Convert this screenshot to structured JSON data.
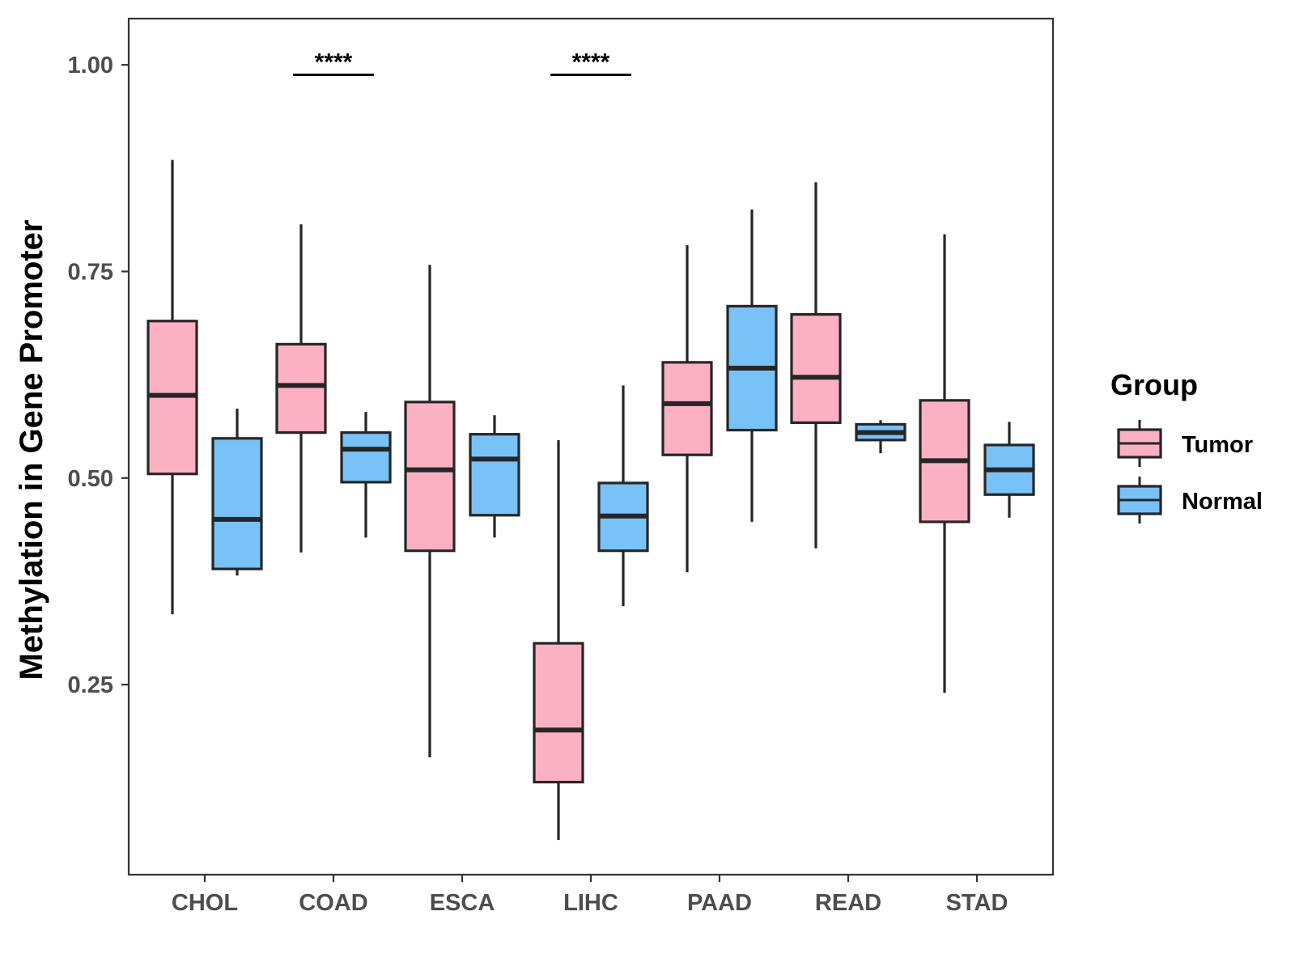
{
  "chart_data": {
    "type": "boxplot",
    "title": "",
    "xlabel": "",
    "ylabel": "Methylation in Gene Promoter",
    "ylim": [
      0.02,
      1.056
    ],
    "y_ticks": [
      0.25,
      0.5,
      0.75,
      1.0
    ],
    "y_tick_labels": [
      "0.25",
      "0.50",
      "0.75",
      "1.00"
    ],
    "grid": false,
    "categories": [
      "CHOL",
      "COAD",
      "ESCA",
      "LIHC",
      "PAAD",
      "READ",
      "STAD"
    ],
    "legend": {
      "title": "Group",
      "position": "right",
      "entries": [
        {
          "name": "Tumor",
          "color": "#FBB1C3"
        },
        {
          "name": "Normal",
          "color": "#78C2F8"
        }
      ]
    },
    "series": [
      {
        "name": "Tumor",
        "color": "#FBB1C3",
        "boxes": [
          {
            "category": "CHOL",
            "min": 0.335,
            "q1": 0.505,
            "median": 0.6,
            "q3": 0.69,
            "max": 0.885
          },
          {
            "category": "COAD",
            "min": 0.41,
            "q1": 0.555,
            "median": 0.612,
            "q3": 0.662,
            "max": 0.807
          },
          {
            "category": "ESCA",
            "min": 0.162,
            "q1": 0.412,
            "median": 0.51,
            "q3": 0.592,
            "max": 0.758
          },
          {
            "category": "LIHC",
            "min": 0.062,
            "q1": 0.132,
            "median": 0.195,
            "q3": 0.3,
            "max": 0.546
          },
          {
            "category": "PAAD",
            "min": 0.386,
            "q1": 0.528,
            "median": 0.59,
            "q3": 0.64,
            "max": 0.782
          },
          {
            "category": "READ",
            "min": 0.415,
            "q1": 0.567,
            "median": 0.622,
            "q3": 0.698,
            "max": 0.858
          },
          {
            "category": "STAD",
            "min": 0.24,
            "q1": 0.447,
            "median": 0.521,
            "q3": 0.594,
            "max": 0.795
          }
        ]
      },
      {
        "name": "Normal",
        "color": "#78C2F8",
        "boxes": [
          {
            "category": "CHOL",
            "min": 0.382,
            "q1": 0.39,
            "median": 0.45,
            "q3": 0.548,
            "max": 0.584
          },
          {
            "category": "COAD",
            "min": 0.428,
            "q1": 0.495,
            "median": 0.535,
            "q3": 0.555,
            "max": 0.58
          },
          {
            "category": "ESCA",
            "min": 0.428,
            "q1": 0.455,
            "median": 0.523,
            "q3": 0.553,
            "max": 0.576
          },
          {
            "category": "LIHC",
            "min": 0.345,
            "q1": 0.412,
            "median": 0.454,
            "q3": 0.494,
            "max": 0.612
          },
          {
            "category": "PAAD",
            "min": 0.447,
            "q1": 0.558,
            "median": 0.633,
            "q3": 0.708,
            "max": 0.825
          },
          {
            "category": "READ",
            "min": 0.53,
            "q1": 0.546,
            "median": 0.555,
            "q3": 0.565,
            "max": 0.57
          },
          {
            "category": "STAD",
            "min": 0.452,
            "q1": 0.48,
            "median": 0.51,
            "q3": 0.54,
            "max": 0.568
          }
        ]
      }
    ],
    "annotations": [
      {
        "category": "COAD",
        "label": "****",
        "y": 0.988
      },
      {
        "category": "LIHC",
        "label": "****",
        "y": 0.988
      }
    ]
  }
}
